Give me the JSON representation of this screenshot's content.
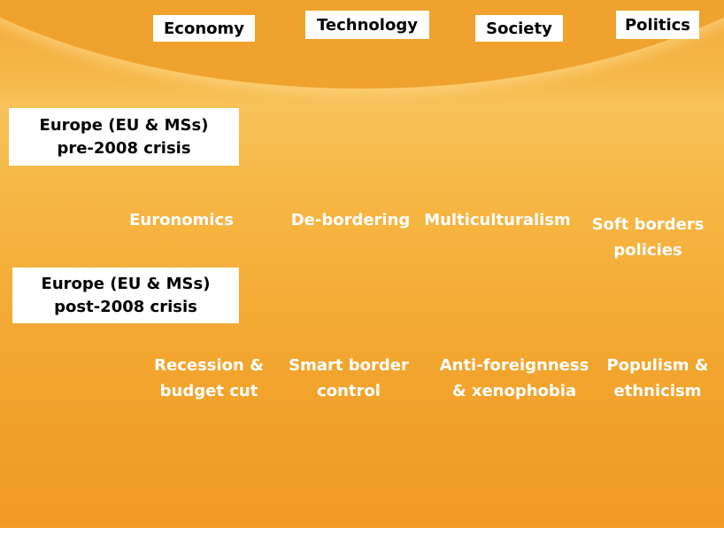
{
  "columns": [
    "Economy",
    "Technology",
    "Society",
    "Politics"
  ],
  "rows": [
    {
      "label": [
        "Europe (EU & MSs)",
        "pre-2008 crisis"
      ],
      "cells": [
        [
          "Euronomics"
        ],
        [
          "De-bordering"
        ],
        [
          "Multiculturalism"
        ],
        [
          "Soft borders",
          "policies"
        ]
      ]
    },
    {
      "label": [
        "Europe (EU & MSs)",
        "post-2008 crisis"
      ],
      "cells": [
        [
          "Recession &",
          "budget cut"
        ],
        [
          "Smart border",
          "control"
        ],
        [
          "Anti-foreignness",
          "& xenophobia"
        ],
        [
          "Populism &",
          "ethnicism"
        ]
      ]
    }
  ]
}
